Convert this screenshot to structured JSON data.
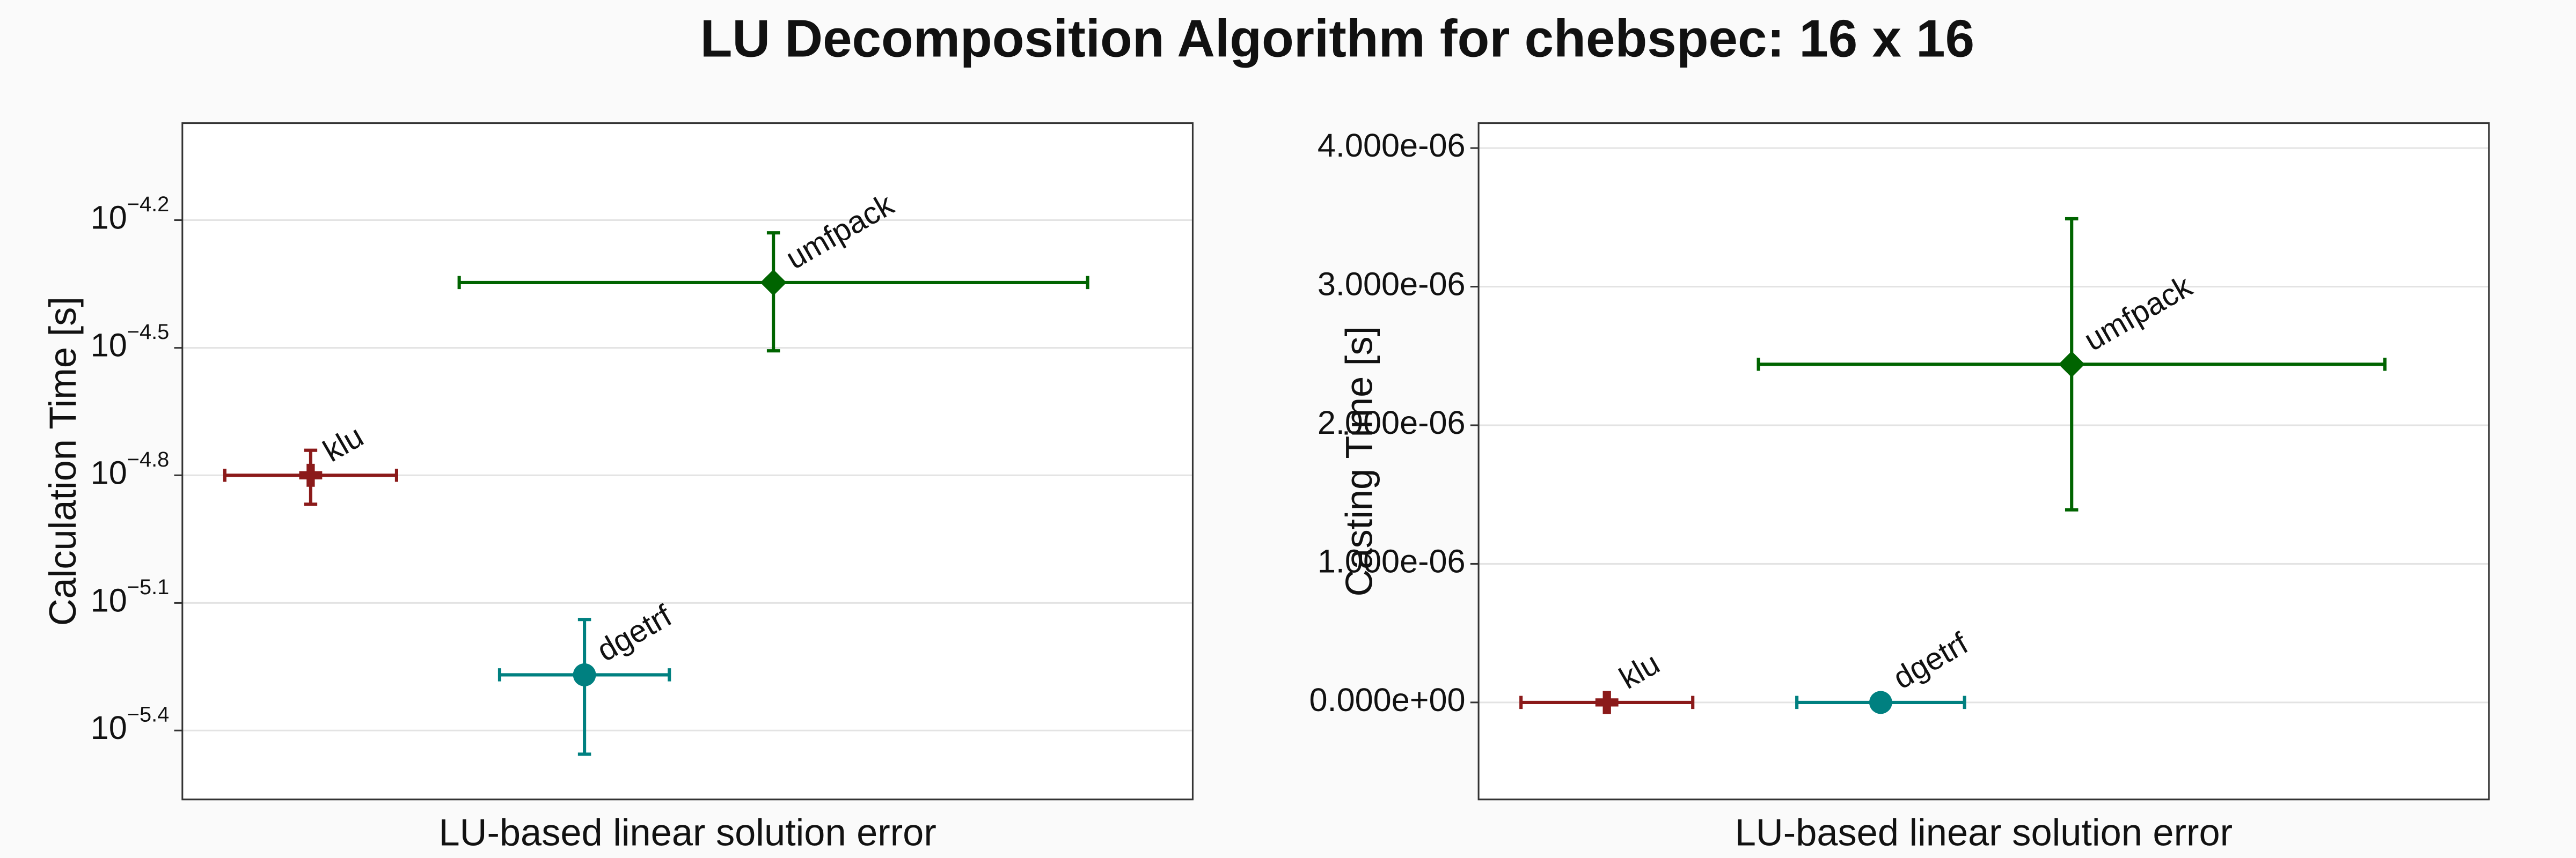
{
  "title": "LU Decomposition Algorithm for chebspec: 16 x 16",
  "chart_data": [
    {
      "type": "scatter",
      "xlabel": "LU-based linear solution error",
      "ylabel": "Calculation Time [s]",
      "log_y": true,
      "grid": true,
      "xlim": [
        0,
        1
      ],
      "ylim": [
        2.74e-06,
        0.0001067
      ],
      "yticks": [
        {
          "value": 6.31e-05,
          "label": "10",
          "exponent": "−4.2"
        },
        {
          "value": 3.16e-05,
          "label": "10",
          "exponent": "−4.5"
        },
        {
          "value": 1.585e-05,
          "label": "10",
          "exponent": "−4.8"
        },
        {
          "value": 7.94e-06,
          "label": "10",
          "exponent": "−5.1"
        },
        {
          "value": 3.98e-06,
          "label": "10",
          "exponent": "−5.4"
        }
      ],
      "series": [
        {
          "name": "klu",
          "color": "#8b1a1a",
          "marker": "cross",
          "x": [
            0.127
          ],
          "values": [
            1.585e-05
          ],
          "xerr": [
            0.085
          ],
          "yerr": [
            2.3e-06
          ]
        },
        {
          "name": "umfpack",
          "color": "#006400",
          "marker": "diamond",
          "x": [
            0.585
          ],
          "values": [
            4.5e-05
          ],
          "xerr": [
            0.311
          ],
          "yerr": [
            1.39e-05
          ]
        },
        {
          "name": "dgetrf",
          "color": "#008080",
          "marker": "circle",
          "x": [
            0.398
          ],
          "values": [
            5.38e-06
          ],
          "xerr": [
            0.084
          ],
          "yerr": [
            1.88e-06
          ]
        }
      ]
    },
    {
      "type": "scatter",
      "xlabel": "LU-based linear solution error",
      "ylabel": "Casting Time [s]",
      "log_y": false,
      "grid": true,
      "xlim": [
        0,
        1
      ],
      "ylim": [
        -7e-07,
        4.18e-06
      ],
      "yticks": [
        {
          "value": 4e-06,
          "label": "4.000e-06"
        },
        {
          "value": 3e-06,
          "label": "3.000e-06"
        },
        {
          "value": 2e-06,
          "label": "2.000e-06"
        },
        {
          "value": 1e-06,
          "label": "1.000e-06"
        },
        {
          "value": 0,
          "label": "0.000e+00"
        }
      ],
      "series": [
        {
          "name": "klu",
          "color": "#8b1a1a",
          "marker": "cross",
          "x": [
            0.127
          ],
          "values": [
            0
          ],
          "xerr": [
            0.085
          ],
          "yerr": [
            0
          ]
        },
        {
          "name": "umfpack",
          "color": "#006400",
          "marker": "diamond",
          "x": [
            0.587
          ],
          "values": [
            2.44e-06
          ],
          "xerr": [
            0.31
          ],
          "yerr": [
            1.05e-06
          ]
        },
        {
          "name": "dgetrf",
          "color": "#008080",
          "marker": "circle",
          "x": [
            0.398
          ],
          "values": [
            0
          ],
          "xerr": [
            0.083
          ],
          "yerr": [
            0
          ]
        }
      ]
    }
  ]
}
